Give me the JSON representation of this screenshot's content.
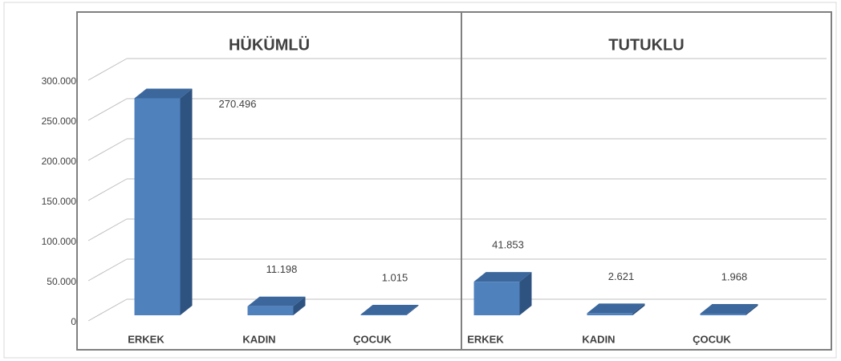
{
  "chart_data": {
    "type": "bar3d",
    "color": "#4f81bd",
    "ylim": [
      0,
      300000
    ],
    "yticks": [
      0,
      {
        "value": 50000,
        "label": "50.000"
      },
      {
        "value": 100000,
        "label": "100.000"
      },
      {
        "value": 150000,
        "label": "150.000"
      },
      {
        "value": 200000,
        "label": "200.000"
      },
      {
        "value": 250000,
        "label": "250.000"
      },
      {
        "value": 300000,
        "label": "300.000"
      }
    ],
    "grid": true,
    "panels": [
      {
        "title": "HÜKÜMLÜ",
        "categories": [
          "ERKEK",
          "KADIN",
          "ÇOCUK"
        ],
        "values": [
          270496,
          11198,
          1015
        ],
        "value_labels": [
          "270.496",
          "11.198",
          "1.015"
        ]
      },
      {
        "title": "TUTUKLU",
        "categories": [
          "ERKEK",
          "KADIN",
          "ÇOCUK"
        ],
        "values": [
          41853,
          2621,
          1968
        ],
        "value_labels": [
          "41.853",
          "2.621",
          "1.968"
        ]
      }
    ]
  }
}
